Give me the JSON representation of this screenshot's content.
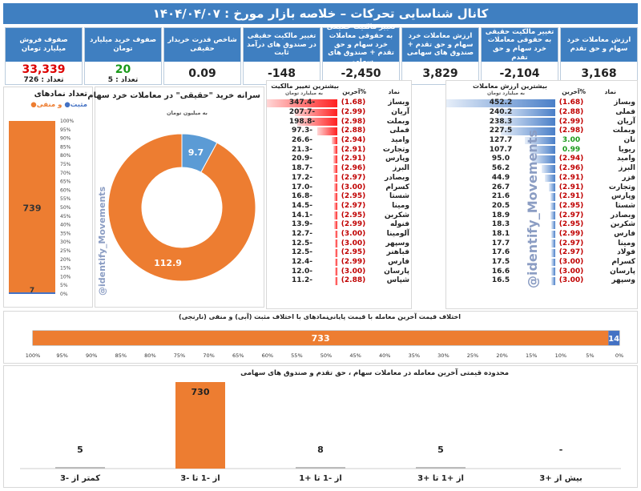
{
  "header": {
    "title": "کانال شناسایی تحرکات   –   خلاصه بازار مورخ : ۱۴۰۴/۰۴/۰۷"
  },
  "stats": [
    {
      "label": "ارزش معاملات خرد سهام و حق تقدم",
      "value": "3,168"
    },
    {
      "label": "تغییر مالکیت حقیقی به حقوقی معاملات خرد سهام و حق تقدم",
      "value": "-2,104"
    },
    {
      "label": "ارزش معاملات خرد سهام و حق تقدم + صندوق های سهامی",
      "value": "3,829"
    },
    {
      "label": "تغییر مالکیت حقیقی به حقوقی معاملات خرد سهام و حق تقدم + صندوق های سهامی",
      "value": "-2,450"
    },
    {
      "label": "تغییر مالکیت حقیقی در صندوق های درآمد ثابت",
      "value": "-148"
    },
    {
      "label": "شاخص قدرت خریدار حقیقی",
      "value": "0.09"
    },
    {
      "label": "صفوف خرید میلیارد تومان",
      "value": "20",
      "sub": "تعداد : 5"
    },
    {
      "label": "صفوف فروش میلیارد تومان",
      "value": "33,339",
      "sub": "تعداد : 726"
    }
  ],
  "right_table": {
    "title": "بیشترین ارزش معاملات",
    "subtitle": "به میلیارد تومان",
    "col_sym": "نماد",
    "col_pct": "%آخرین",
    "rows": [
      {
        "sym": "وبساز",
        "pct": "(1.68)",
        "val": "452.2"
      },
      {
        "sym": "فملی",
        "pct": "(2.88)",
        "val": "240.2"
      },
      {
        "sym": "آریان",
        "pct": "(2.99)",
        "val": "238.3"
      },
      {
        "sym": "وبملت",
        "pct": "(2.98)",
        "val": "227.5"
      },
      {
        "sym": "نان",
        "pct": "3.00",
        "val": "127.7"
      },
      {
        "sym": "ریویا",
        "pct": "0.99",
        "val": "107.7"
      },
      {
        "sym": "وامید",
        "pct": "(2.94)",
        "val": "95.0"
      },
      {
        "sym": "البرز",
        "pct": "(2.96)",
        "val": "56.2"
      },
      {
        "sym": "فزر",
        "pct": "(2.91)",
        "val": "44.9"
      },
      {
        "sym": "وتجارت",
        "pct": "(2.91)",
        "val": "26.7"
      },
      {
        "sym": "وپارس",
        "pct": "(2.91)",
        "val": "21.6"
      },
      {
        "sym": "شستا",
        "pct": "(2.95)",
        "val": "20.5"
      },
      {
        "sym": "وبصادر",
        "pct": "(2.97)",
        "val": "18.9"
      },
      {
        "sym": "شکربن",
        "pct": "(2.95)",
        "val": "18.3"
      },
      {
        "sym": "فارس",
        "pct": "(2.99)",
        "val": "18.1"
      },
      {
        "sym": "ومینا",
        "pct": "(2.97)",
        "val": "17.7"
      },
      {
        "sym": "فولاد",
        "pct": "(2.97)",
        "val": "17.6"
      },
      {
        "sym": "کسرام",
        "pct": "(3.00)",
        "val": "17.5"
      },
      {
        "sym": "پارسان",
        "pct": "(3.00)",
        "val": "16.6"
      },
      {
        "sym": "وسپهر",
        "pct": "(3.00)",
        "val": "16.5"
      }
    ]
  },
  "mid_table": {
    "title": "بیشترین تغییر مالکیت",
    "subtitle": "به میلیارد تومان",
    "col_sym": "نماد",
    "col_pct": "%آخرین",
    "rows": [
      {
        "sym": "وبساز",
        "pct": "(1.68)",
        "val": "-347.4"
      },
      {
        "sym": "آریان",
        "pct": "(2.99)",
        "val": "-207.7"
      },
      {
        "sym": "وبملت",
        "pct": "(2.98)",
        "val": "-198.8"
      },
      {
        "sym": "فملی",
        "pct": "(2.88)",
        "val": "-97.3"
      },
      {
        "sym": "وامید",
        "pct": "(2.94)",
        "val": "-26.6"
      },
      {
        "sym": "وتجارت",
        "pct": "(2.91)",
        "val": "-21.3"
      },
      {
        "sym": "وپارس",
        "pct": "(2.91)",
        "val": "-20.9"
      },
      {
        "sym": "البرز",
        "pct": "(2.96)",
        "val": "-18.7"
      },
      {
        "sym": "وبصادر",
        "pct": "(2.97)",
        "val": "-17.2"
      },
      {
        "sym": "کسرام",
        "pct": "(3.00)",
        "val": "-17.0"
      },
      {
        "sym": "شستا",
        "pct": "(2.95)",
        "val": "-16.8"
      },
      {
        "sym": "ومینا",
        "pct": "(2.97)",
        "val": "-14.5"
      },
      {
        "sym": "شکربن",
        "pct": "(2.95)",
        "val": "-14.1"
      },
      {
        "sym": "فنوله",
        "pct": "(2.99)",
        "val": "-13.9"
      },
      {
        "sym": "آلومینا",
        "pct": "(3.00)",
        "val": "-12.7"
      },
      {
        "sym": "وسپهر",
        "pct": "(3.00)",
        "val": "-12.5"
      },
      {
        "sym": "فباهنر",
        "pct": "(2.95)",
        "val": "-12.5"
      },
      {
        "sym": "فارس",
        "pct": "(2.99)",
        "val": "-12.4"
      },
      {
        "sym": "پارسان",
        "pct": "(3.00)",
        "val": "-12.0"
      },
      {
        "sym": "شپاس",
        "pct": "(2.88)",
        "val": "-11.2"
      }
    ]
  },
  "watermark": "@identify_Movements",
  "colors": {
    "blue": "#4472c4",
    "orange": "#ed7d31",
    "header": "#3f7fc1",
    "red": "#e02020",
    "green": "#1a9a1a"
  },
  "chart_data": [
    {
      "type": "pie",
      "title": "سرانه خرید \"حقیقی\" در معاملات خرد سهام",
      "subtitle": "به میلیون تومان",
      "slices": [
        {
          "label": "9.7",
          "value": 9.7,
          "color": "#5b9bd5"
        },
        {
          "label": "112.9",
          "value": 112.9,
          "color": "#ed7d31"
        }
      ]
    },
    {
      "type": "bar",
      "title": "تعداد نمادهای",
      "legend": [
        "مثبت",
        "و منفی"
      ],
      "ylim": [
        0,
        100
      ],
      "yticks": [
        "100%",
        "95%",
        "90%",
        "85%",
        "80%",
        "75%",
        "70%",
        "65%",
        "60%",
        "55%",
        "50%",
        "45%",
        "40%",
        "35%",
        "30%",
        "25%",
        "20%",
        "15%",
        "10%",
        "5%",
        "0%"
      ],
      "series": [
        {
          "name": "مثبت",
          "value": 7,
          "color": "#4472c4"
        },
        {
          "name": "منفی",
          "value": 739,
          "color": "#ed7d31"
        }
      ]
    },
    {
      "type": "bar",
      "title": "نمادهای با اختلاف مثبت (آبی) و منفی (نارنجی)",
      "subtitle": "اختلاف قیمت آخرین معامله با قیمت پایانی",
      "xticks": [
        "100%",
        "95%",
        "90%",
        "85%",
        "80%",
        "75%",
        "70%",
        "65%",
        "60%",
        "55%",
        "50%",
        "45%",
        "40%",
        "35%",
        "30%",
        "25%",
        "20%",
        "15%",
        "10%",
        "5%",
        "0%"
      ],
      "series": [
        {
          "name": "منفی",
          "value": 733,
          "color": "#ed7d31"
        },
        {
          "name": "مثبت",
          "value": 14,
          "color": "#4472c4"
        }
      ]
    },
    {
      "type": "bar",
      "title": "محدوده قیمتی آخرین معامله در  معاملات سهام ، حق تقدم و صندوق های سهامی",
      "categories": [
        "بیش از +3",
        "از +1 تا +3",
        "از -1 تا +1",
        "از -1 تا -3",
        "کمتر از -3"
      ],
      "values": [
        null,
        5,
        8,
        730,
        5
      ],
      "labels": [
        "-",
        "5",
        "8",
        "730",
        "5"
      ]
    }
  ]
}
